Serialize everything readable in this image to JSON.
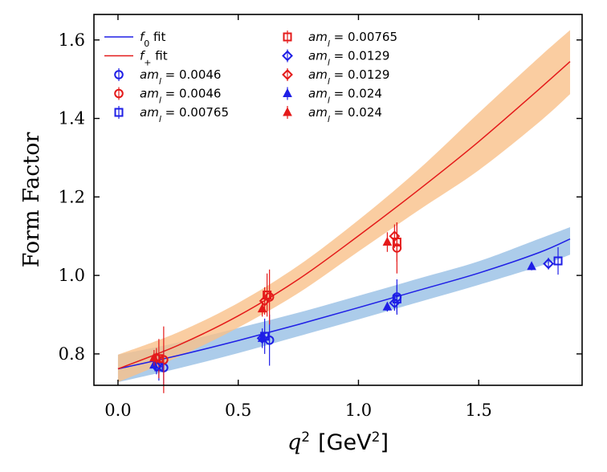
{
  "chart_data": {
    "type": "scatter",
    "title": "",
    "xlabel_prefix": "q",
    "xlabel_sup": "2",
    "xlabel_unit_open": "[GeV",
    "xlabel_unit_sup": "2",
    "xlabel_unit_close": "]",
    "ylabel": "Form Factor",
    "xlim": [
      -0.1,
      1.93
    ],
    "ylim": [
      0.72,
      1.665
    ],
    "xticks": [
      0.0,
      0.5,
      1.0,
      1.5
    ],
    "xtick_labels": [
      "0.0",
      "0.5",
      "1.0",
      "1.5"
    ],
    "yticks": [
      0.8,
      1.0,
      1.2,
      1.4,
      1.6
    ],
    "ytick_labels": [
      "0.8",
      "1.0",
      "1.2",
      "1.4",
      "1.6"
    ],
    "colors": {
      "f0": "#1f1fe6",
      "fplus": "#e41a1a",
      "f0_band": "#9dc3e6",
      "fplus_band": "#f9c08a"
    },
    "fits": [
      {
        "name": "f0 fit",
        "label_main": "f",
        "label_sub": "0",
        "label_suffix": " fit",
        "color": "f0",
        "x": [
          0.0,
          0.25,
          0.5,
          0.75,
          1.0,
          1.25,
          1.5,
          1.75,
          1.88
        ],
        "y": [
          0.762,
          0.796,
          0.834,
          0.875,
          0.918,
          0.962,
          1.006,
          1.058,
          1.093
        ],
        "band_lower": [
          0.728,
          0.763,
          0.802,
          0.845,
          0.888,
          0.932,
          0.976,
          1.023,
          1.053
        ],
        "band_upper": [
          0.798,
          0.829,
          0.866,
          0.905,
          0.948,
          0.992,
          1.036,
          1.093,
          1.123
        ]
      },
      {
        "name": "f+ fit",
        "label_main": "f",
        "label_sub": "+",
        "label_suffix": " fit",
        "color": "fplus",
        "x": [
          0.0,
          0.25,
          0.5,
          0.75,
          1.0,
          1.25,
          1.5,
          1.75,
          1.88
        ],
        "y": [
          0.762,
          0.822,
          0.897,
          0.99,
          1.101,
          1.218,
          1.341,
          1.474,
          1.545
        ],
        "band_lower": [
          0.728,
          0.792,
          0.867,
          0.955,
          1.061,
          1.166,
          1.268,
          1.39,
          1.462
        ],
        "band_upper": [
          0.798,
          0.855,
          0.93,
          1.025,
          1.141,
          1.27,
          1.414,
          1.555,
          1.625
        ]
      }
    ],
    "series": [
      {
        "name": "aml=0.0046 (f0)",
        "label_prefix": "am",
        "label_sub": "l",
        "label_value": " = 0.0046",
        "color": "f0",
        "marker": "circle",
        "x": [
          0.19,
          0.63,
          1.16
        ],
        "y": [
          0.765,
          0.835,
          0.945
        ],
        "err": [
          0.045,
          0.065,
          0.045
        ]
      },
      {
        "name": "aml=0.0046 (f+)",
        "label_prefix": "am",
        "label_sub": "l",
        "label_value": " = 0.0046",
        "color": "fplus",
        "marker": "circle",
        "x": [
          0.19,
          0.63,
          1.16
        ],
        "y": [
          0.785,
          0.945,
          1.07
        ],
        "err": [
          0.085,
          0.07,
          0.065
        ]
      },
      {
        "name": "aml=0.00765 (f0)",
        "label_prefix": "am",
        "label_sub": "l",
        "label_value": " = 0.00765",
        "color": "f0",
        "marker": "square",
        "x": [
          0.17,
          0.61,
          1.16,
          1.83
        ],
        "y": [
          0.767,
          0.845,
          0.94,
          1.037
        ],
        "err": [
          0.035,
          0.045,
          0.035,
          0.035
        ]
      },
      {
        "name": "aml=0.00765 (f+)",
        "label_prefix": "am",
        "label_sub": "l",
        "label_value": " = 0.00765",
        "color": "fplus",
        "marker": "square",
        "x": [
          0.17,
          0.62,
          1.16
        ],
        "y": [
          0.788,
          0.95,
          1.085
        ],
        "err": [
          0.05,
          0.055,
          0.05
        ]
      },
      {
        "name": "aml=0.0129 (f0)",
        "label_prefix": "am",
        "label_sub": "l",
        "label_value": " = 0.0129",
        "color": "f0",
        "marker": "diamond",
        "x": [
          0.16,
          0.6,
          1.15,
          1.79
        ],
        "y": [
          0.768,
          0.84,
          0.93,
          1.03
        ],
        "err": [
          0.02,
          0.025,
          0.02,
          0.015
        ]
      },
      {
        "name": "aml=0.0129 (f+)",
        "label_prefix": "am",
        "label_sub": "l",
        "label_value": " = 0.0129",
        "color": "fplus",
        "marker": "diamond",
        "x": [
          0.16,
          0.61,
          1.15
        ],
        "y": [
          0.79,
          0.935,
          1.1
        ],
        "err": [
          0.025,
          0.035,
          0.03
        ]
      },
      {
        "name": "aml=0.024 (f0)",
        "label_prefix": "am",
        "label_sub": "l",
        "label_value": " = 0.024",
        "color": "f0",
        "marker": "triangle",
        "x": [
          0.15,
          0.6,
          1.12,
          1.72
        ],
        "y": [
          0.772,
          0.84,
          0.92,
          1.023
        ],
        "err": [
          0.012,
          0.015,
          0.012,
          0.01
        ]
      },
      {
        "name": "aml=0.024 (f+)",
        "label_prefix": "am",
        "label_sub": "l",
        "label_value": " = 0.024",
        "color": "fplus",
        "marker": "triangle",
        "x": [
          0.15,
          0.6,
          1.12
        ],
        "y": [
          0.79,
          0.915,
          1.085
        ],
        "err": [
          0.02,
          0.02,
          0.025
        ]
      }
    ],
    "legend_position": "upper-left",
    "grid": false
  }
}
